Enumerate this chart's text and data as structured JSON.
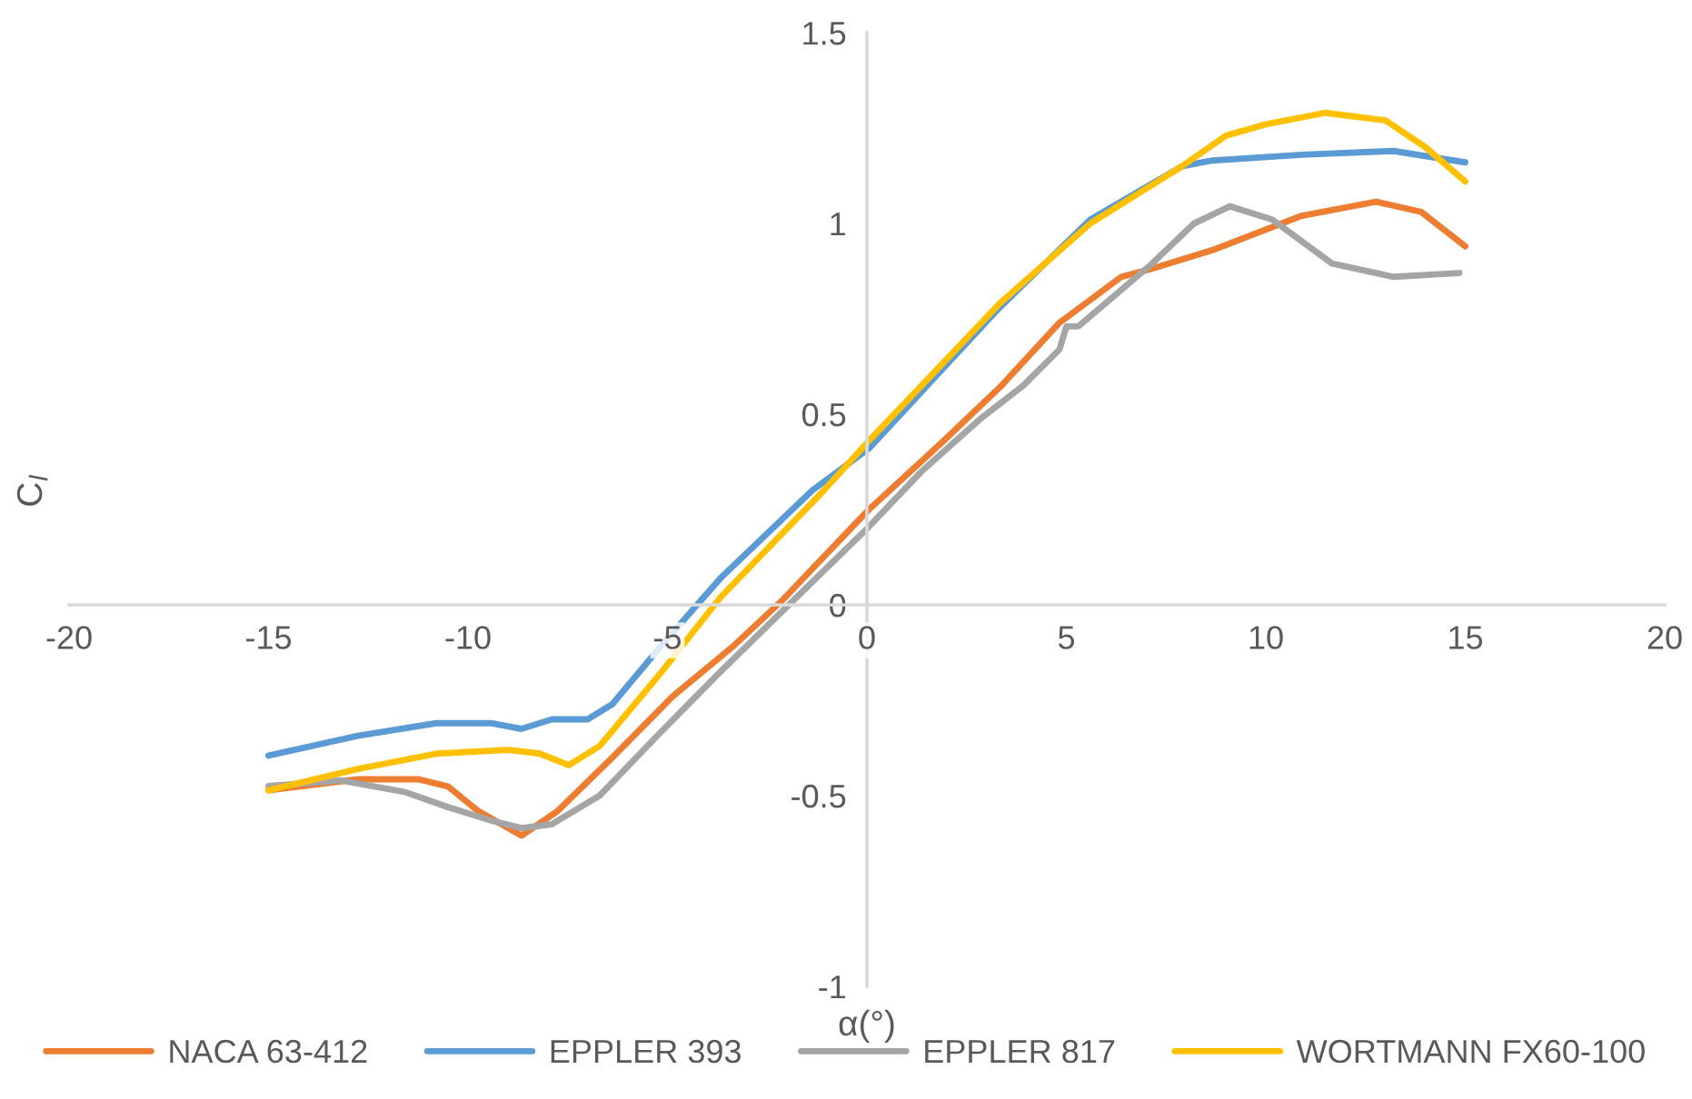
{
  "chart_data": {
    "type": "line",
    "xlabel": "α(°)",
    "ylabel": "C$_{l}$",
    "xlim": [
      -20,
      20
    ],
    "xticks": [
      -20,
      -15,
      -10,
      -5,
      0,
      5,
      10,
      15,
      20
    ],
    "ylim": [
      -1,
      1.5
    ],
    "yticks": [
      -1,
      -0.5,
      0,
      0.5,
      1,
      1.5
    ],
    "grid": false,
    "legend": "bottom",
    "marker": "none",
    "line_style": "solid",
    "series": [
      {
        "name": "NACA 63-412",
        "color": "#ed7d31",
        "x": [
          -15,
          -12.76,
          -11.25,
          -10.5,
          -9.75,
          -8.66,
          -7.75,
          -6.38,
          -4.87,
          -3.37,
          -2.14,
          -1.23,
          0.05,
          1.82,
          3.33,
          4.83,
          6.38,
          7.1,
          8.66,
          10.9,
          12.76,
          13.9,
          15
        ],
        "values": [
          -0.486,
          -0.457,
          -0.457,
          -0.476,
          -0.54,
          -0.605,
          -0.54,
          -0.4,
          -0.24,
          -0.11,
          0.01,
          0.11,
          0.25,
          0.42,
          0.57,
          0.74,
          0.86,
          0.88,
          0.93,
          1.02,
          1.057,
          1.03,
          0.94
        ]
      },
      {
        "name": "EPPLER 393",
        "color": "#5b9bd5",
        "x": [
          -15,
          -12.76,
          -10.8,
          -9.43,
          -8.66,
          -7.9,
          -7.0,
          -6.38,
          -5.18,
          -3.67,
          -1.37,
          0.05,
          3.33,
          5.6,
          7.9,
          8.66,
          10.9,
          13.2,
          15
        ],
        "values": [
          -0.395,
          -0.343,
          -0.31,
          -0.31,
          -0.325,
          -0.3,
          -0.3,
          -0.26,
          -0.11,
          0.07,
          0.3,
          0.41,
          0.78,
          1.01,
          1.15,
          1.165,
          1.18,
          1.19,
          1.16
        ]
      },
      {
        "name": "EPPLER 817",
        "color": "#a5a5a5",
        "x": [
          -15,
          -13.2,
          -11.6,
          -10.5,
          -9.43,
          -8.66,
          -7.9,
          -6.7,
          -5.18,
          -3.67,
          -1.37,
          0.05,
          1.37,
          2.87,
          3.92,
          4.83,
          5.0,
          5.3,
          7.1,
          8.2,
          9.1,
          10.16,
          11.66,
          13.2,
          14.85
        ],
        "values": [
          -0.475,
          -0.46,
          -0.49,
          -0.53,
          -0.565,
          -0.585,
          -0.575,
          -0.5,
          -0.335,
          -0.175,
          0.06,
          0.205,
          0.35,
          0.49,
          0.575,
          0.67,
          0.73,
          0.73,
          0.89,
          1.0,
          1.045,
          1.01,
          0.895,
          0.86,
          0.87
        ]
      },
      {
        "name": "WORTMANN FX60-100",
        "color": "#ffc000",
        "x": [
          -15,
          -12.76,
          -10.8,
          -8.97,
          -8.2,
          -7.47,
          -6.7,
          -5.18,
          -3.67,
          -1.08,
          0.05,
          3.33,
          5.6,
          7.9,
          9,
          10,
          11.5,
          13,
          14,
          15
        ],
        "values": [
          -0.486,
          -0.43,
          -0.39,
          -0.38,
          -0.39,
          -0.42,
          -0.37,
          -0.18,
          0.02,
          0.3,
          0.43,
          0.79,
          1.0,
          1.15,
          1.23,
          1.26,
          1.29,
          1.27,
          1.2,
          1.11
        ]
      }
    ]
  }
}
